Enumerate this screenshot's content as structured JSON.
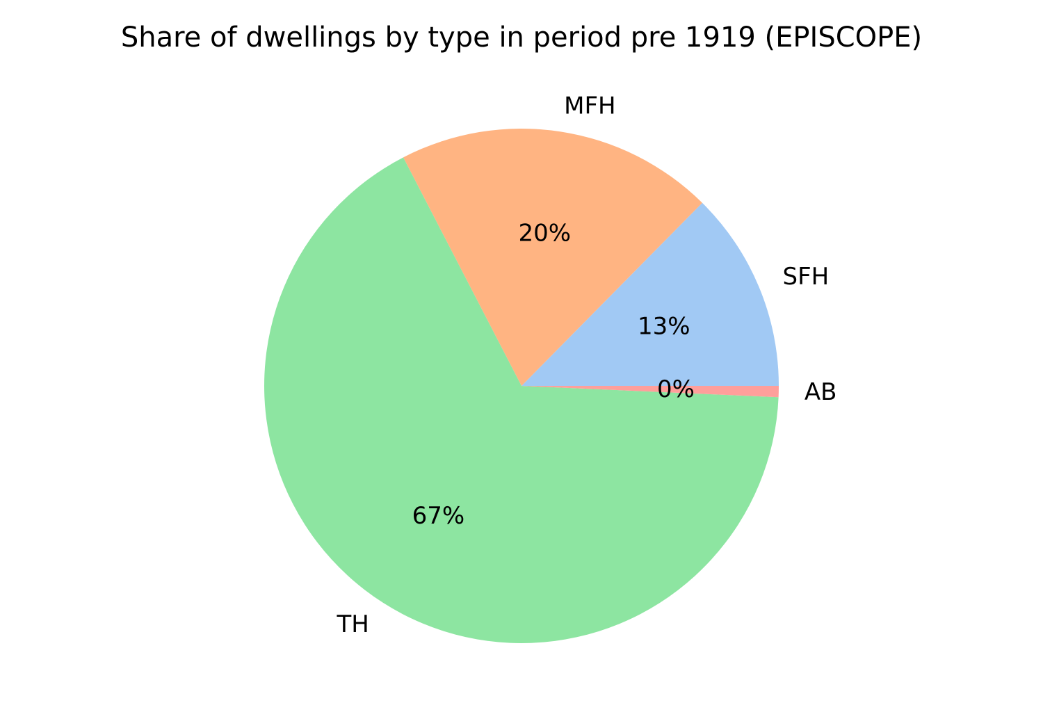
{
  "chart_data": {
    "type": "pie",
    "title": "Share of dwellings by type in period pre 1919 (EPISCOPE)",
    "start_angle_deg": 0,
    "direction": "counterclockwise",
    "slices": [
      {
        "label": "SFH",
        "value": 12.6,
        "pct_label": "13%",
        "color": "#a1c9f4"
      },
      {
        "label": "MFH",
        "value": 20.0,
        "pct_label": "20%",
        "color": "#ffb482"
      },
      {
        "label": "TH",
        "value": 66.7,
        "pct_label": "67%",
        "color": "#8de5a1"
      },
      {
        "label": "AB",
        "value": 0.7,
        "pct_label": "0%",
        "color": "#ff9f9b"
      }
    ]
  }
}
